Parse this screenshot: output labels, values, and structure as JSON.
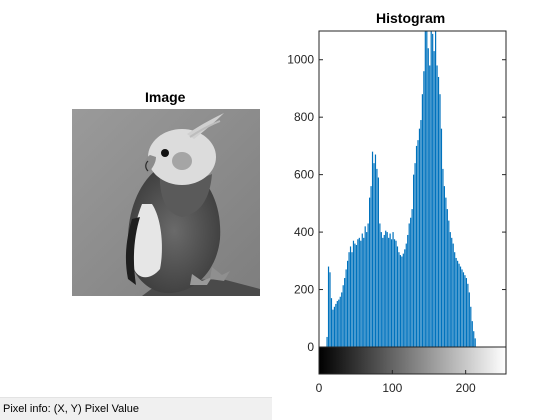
{
  "image_panel": {
    "title": "Image"
  },
  "status_bar": {
    "text": "Pixel info: (X, Y)  Pixel Value"
  },
  "colors": {
    "bar": "#0072bd",
    "axis": "#262626"
  },
  "chart_data": {
    "type": "bar",
    "title": "Histogram",
    "xlabel": "",
    "ylabel": "",
    "xlim": [
      0,
      255
    ],
    "ylim": [
      0,
      1100
    ],
    "x_ticks": [
      0,
      100,
      200
    ],
    "y_ticks": [
      0,
      200,
      400,
      600,
      800,
      1000
    ],
    "grid": false,
    "colorbar": "grayscale 0-255 below x-axis",
    "bins": [
      [
        11,
        35
      ],
      [
        13,
        280
      ],
      [
        15,
        260
      ],
      [
        17,
        170
      ],
      [
        19,
        130
      ],
      [
        21,
        140
      ],
      [
        23,
        150
      ],
      [
        25,
        160
      ],
      [
        27,
        165
      ],
      [
        29,
        175
      ],
      [
        31,
        190
      ],
      [
        33,
        215
      ],
      [
        35,
        240
      ],
      [
        37,
        270
      ],
      [
        39,
        300
      ],
      [
        41,
        330
      ],
      [
        43,
        350
      ],
      [
        45,
        330
      ],
      [
        47,
        370
      ],
      [
        49,
        360
      ],
      [
        51,
        355
      ],
      [
        53,
        375
      ],
      [
        55,
        380
      ],
      [
        57,
        370
      ],
      [
        59,
        395
      ],
      [
        61,
        380
      ],
      [
        63,
        420
      ],
      [
        65,
        400
      ],
      [
        67,
        430
      ],
      [
        69,
        520
      ],
      [
        71,
        560
      ],
      [
        73,
        680
      ],
      [
        75,
        640
      ],
      [
        77,
        670
      ],
      [
        79,
        620
      ],
      [
        81,
        590
      ],
      [
        83,
        430
      ],
      [
        85,
        400
      ],
      [
        87,
        380
      ],
      [
        89,
        390
      ],
      [
        91,
        405
      ],
      [
        93,
        400
      ],
      [
        95,
        380
      ],
      [
        97,
        395
      ],
      [
        99,
        375
      ],
      [
        101,
        400
      ],
      [
        103,
        375
      ],
      [
        105,
        370
      ],
      [
        107,
        350
      ],
      [
        109,
        330
      ],
      [
        111,
        320
      ],
      [
        113,
        315
      ],
      [
        115,
        325
      ],
      [
        117,
        340
      ],
      [
        119,
        360
      ],
      [
        121,
        390
      ],
      [
        123,
        430
      ],
      [
        125,
        450
      ],
      [
        127,
        480
      ],
      [
        129,
        600
      ],
      [
        131,
        640
      ],
      [
        133,
        700
      ],
      [
        135,
        720
      ],
      [
        137,
        760
      ],
      [
        139,
        790
      ],
      [
        141,
        880
      ],
      [
        143,
        960
      ],
      [
        145,
        1100
      ],
      [
        147,
        1100
      ],
      [
        149,
        1040
      ],
      [
        151,
        980
      ],
      [
        153,
        1100
      ],
      [
        155,
        1090
      ],
      [
        157,
        1030
      ],
      [
        159,
        1100
      ],
      [
        161,
        980
      ],
      [
        163,
        940
      ],
      [
        165,
        880
      ],
      [
        167,
        760
      ],
      [
        169,
        620
      ],
      [
        171,
        560
      ],
      [
        173,
        520
      ],
      [
        175,
        480
      ],
      [
        177,
        440
      ],
      [
        179,
        400
      ],
      [
        181,
        380
      ],
      [
        183,
        360
      ],
      [
        185,
        330
      ],
      [
        187,
        310
      ],
      [
        189,
        300
      ],
      [
        191,
        290
      ],
      [
        193,
        280
      ],
      [
        195,
        270
      ],
      [
        197,
        260
      ],
      [
        199,
        250
      ],
      [
        201,
        240
      ],
      [
        203,
        220
      ],
      [
        205,
        190
      ],
      [
        207,
        140
      ],
      [
        209,
        90
      ],
      [
        211,
        55
      ],
      [
        213,
        30
      ]
    ]
  }
}
